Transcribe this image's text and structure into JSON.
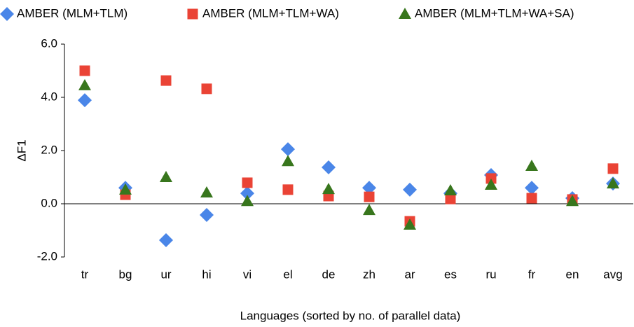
{
  "chart_data": {
    "type": "scatter",
    "x_label": "Languages (sorted by no. of parallel data)",
    "y_label": "ΔF1",
    "categories": [
      "tr",
      "bg",
      "ur",
      "hi",
      "vi",
      "el",
      "de",
      "zh",
      "ar",
      "es",
      "ru",
      "fr",
      "en",
      "avg"
    ],
    "series": [
      {
        "name": "AMBER (MLM+TLM)",
        "color": "#4a86e8",
        "marker": "diamond",
        "values": [
          3.89,
          0.6,
          -1.37,
          -0.42,
          0.39,
          2.05,
          1.37,
          0.6,
          0.53,
          0.39,
          1.08,
          0.6,
          0.21,
          0.76
        ]
      },
      {
        "name": "AMBER (MLM+TLM+WA)",
        "color": "#ea4335",
        "marker": "square",
        "values": [
          5.0,
          0.34,
          4.63,
          4.32,
          0.79,
          0.53,
          0.29,
          0.26,
          -0.66,
          0.18,
          0.95,
          0.21,
          0.16,
          1.32
        ]
      },
      {
        "name": "AMBER (MLM+TLM+WA+SA)",
        "color": "#38761d",
        "marker": "triangle",
        "values": [
          4.45,
          0.53,
          1.0,
          0.42,
          0.1,
          1.6,
          0.55,
          -0.24,
          -0.79,
          0.5,
          0.71,
          1.42,
          0.1,
          0.76
        ]
      }
    ],
    "ylim": [
      -2.0,
      6.0
    ],
    "yticks": [
      {
        "value": -2,
        "label": "-2.0"
      },
      {
        "value": 0,
        "label": "0.0"
      },
      {
        "value": 2,
        "label": "2.0"
      },
      {
        "value": 4,
        "label": "4.0"
      },
      {
        "value": 6,
        "label": "6.0"
      }
    ],
    "grid": false,
    "legend": "top"
  }
}
